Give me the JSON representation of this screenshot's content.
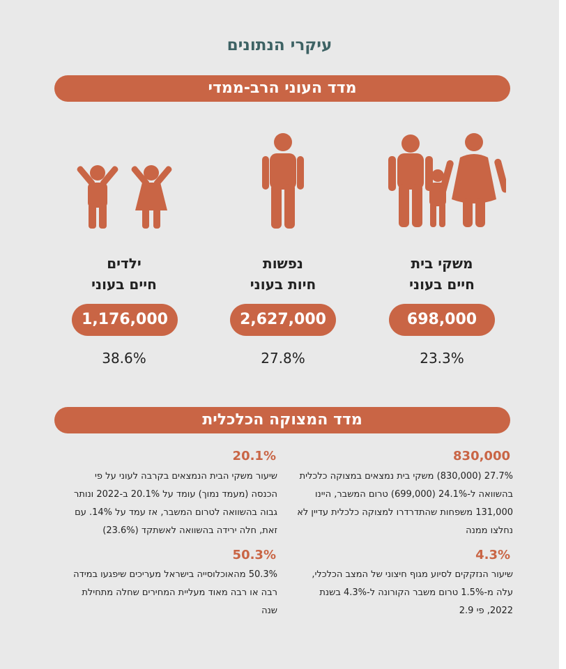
{
  "title": "עיקרי הנתונים",
  "section1": {
    "banner": "מדד העוני הרב-ממדי",
    "groups": [
      {
        "icon": "family-icon",
        "label_line1": "משקי בית",
        "label_line2": "חיים בעוני",
        "count": "698,000",
        "percent": "23.3%"
      },
      {
        "icon": "person-icon",
        "label_line1": "נפשות",
        "label_line2": "חיות בעוני",
        "count": "2,627,000",
        "percent": "27.8%"
      },
      {
        "icon": "children-icon",
        "label_line1": "ילדים",
        "label_line2": "חיים בעוני",
        "count": "1,176,000",
        "percent": "38.6%"
      }
    ]
  },
  "section2": {
    "banner": "מדד המצוקה הכלכלית",
    "items": [
      {
        "stat": "830,000",
        "text": "27.7% (830,000) משקי בית נמצאים במצוקה כלכלית בהשוואה ל-24.1% (699,000) טרום המשבר, היינו 131,000 משפחות שהתדרדרו למצוקה כלכלית עדיין לא נחלצו ממנה"
      },
      {
        "stat": "20.1%",
        "text": "שיעור משקי הבית הנמצאים בקרבה לעוני על פי הכנסה (מעמד נמוך) עומד על 20.1% ב-2022 ונותר גבוה בהשוואה לטרום המשבר, אז עמד על 14%. עם זאת, חלה ירידה בהשוואה לאשתקד (23.6%)"
      },
      {
        "stat": "4.3%",
        "text": "שיעור הנזקקים לסיוע מגוף חיצוני של המצב הכלכלי, עלה מ-1.5% טרום משבר הקורונה ל-4.3% בשנת 2022, פי 2.9"
      },
      {
        "stat": "50.3%",
        "text": "50.3% מהאוכלוסייה בישראל מעריכים שיפגעו במידה רבה או רבה מאוד מעליית המחירים שחלה מתחילת שנה"
      }
    ]
  },
  "colors": {
    "accent": "#c96545",
    "title": "#3d6264",
    "background": "#e9e9e9"
  }
}
